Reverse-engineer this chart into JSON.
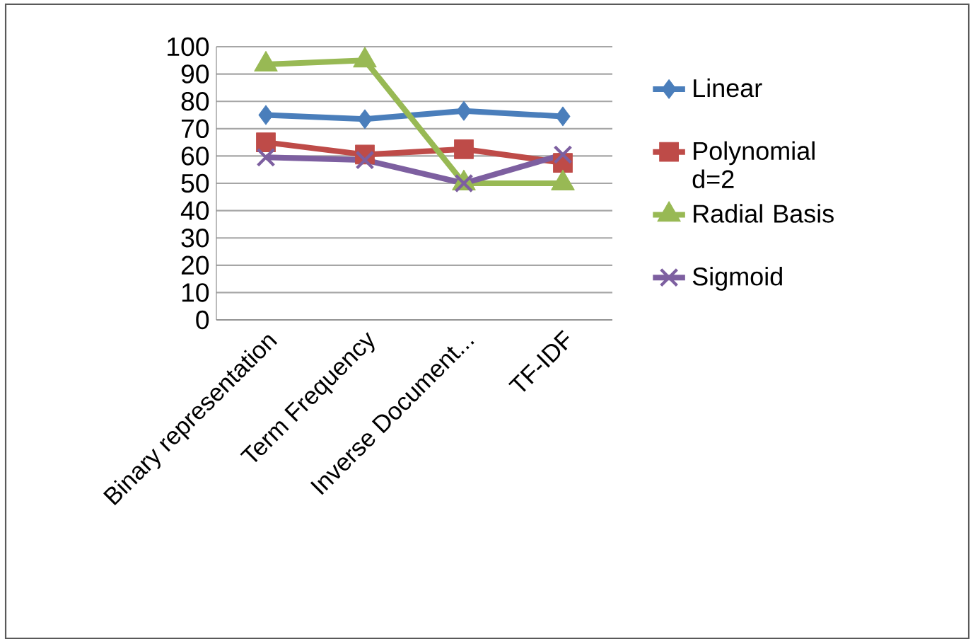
{
  "chart_data": {
    "type": "line",
    "categories": [
      "Binary representation",
      "Term Frequency",
      "Inverse Document...",
      "TF-IDF"
    ],
    "series": [
      {
        "name": "Linear",
        "color": "#4a7ebb",
        "marker": "diamond",
        "values": [
          75,
          73.5,
          76.5,
          74.5
        ]
      },
      {
        "name": "Polynomial d=2",
        "color": "#be4b48",
        "marker": "square",
        "values": [
          65,
          60.5,
          62.5,
          57.5
        ]
      },
      {
        "name": "Radial Basis",
        "color": "#98b954",
        "marker": "triangle",
        "values": [
          93.5,
          95,
          50,
          50
        ]
      },
      {
        "name": "Sigmoid",
        "color": "#7d5fa0",
        "marker": "cross",
        "values": [
          59.5,
          58.5,
          50,
          60.5
        ]
      }
    ],
    "ylim": [
      0,
      100
    ],
    "yticks": [
      0,
      10,
      20,
      30,
      40,
      50,
      60,
      70,
      80,
      90,
      100
    ],
    "grid": "y",
    "legend": "right",
    "line_style": "solid"
  }
}
